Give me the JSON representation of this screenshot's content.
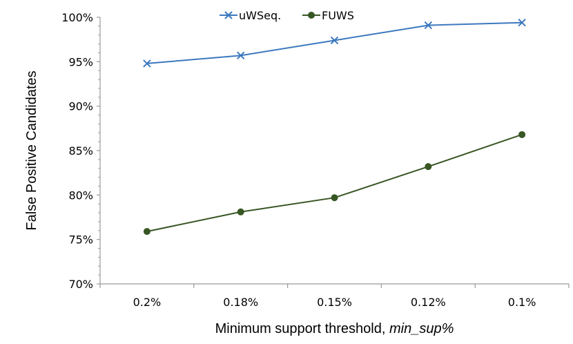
{
  "chart_data": {
    "type": "line",
    "title": "",
    "categories": [
      "0.2%",
      "0.18%",
      "0.15%",
      "0.12%",
      "0.1%"
    ],
    "series": [
      {
        "name": "uWSeq.",
        "values": [
          94.8,
          95.7,
          97.4,
          99.1,
          99.4
        ],
        "color": "#3B78BF",
        "marker": "x"
      },
      {
        "name": "FUWS",
        "values": [
          75.9,
          78.1,
          79.7,
          83.2,
          86.8
        ],
        "color": "#375623",
        "marker": "circle"
      }
    ],
    "xlabel": {
      "text": "Minimum support threshold, ",
      "italic": "min_sup%"
    },
    "ylabel": "False Positive Candidates",
    "ylim": [
      70,
      100
    ],
    "yticks": [
      "70%",
      "75%",
      "80%",
      "85%",
      "90%",
      "95%",
      "100%"
    ],
    "grid": false,
    "legend": "top-center"
  }
}
